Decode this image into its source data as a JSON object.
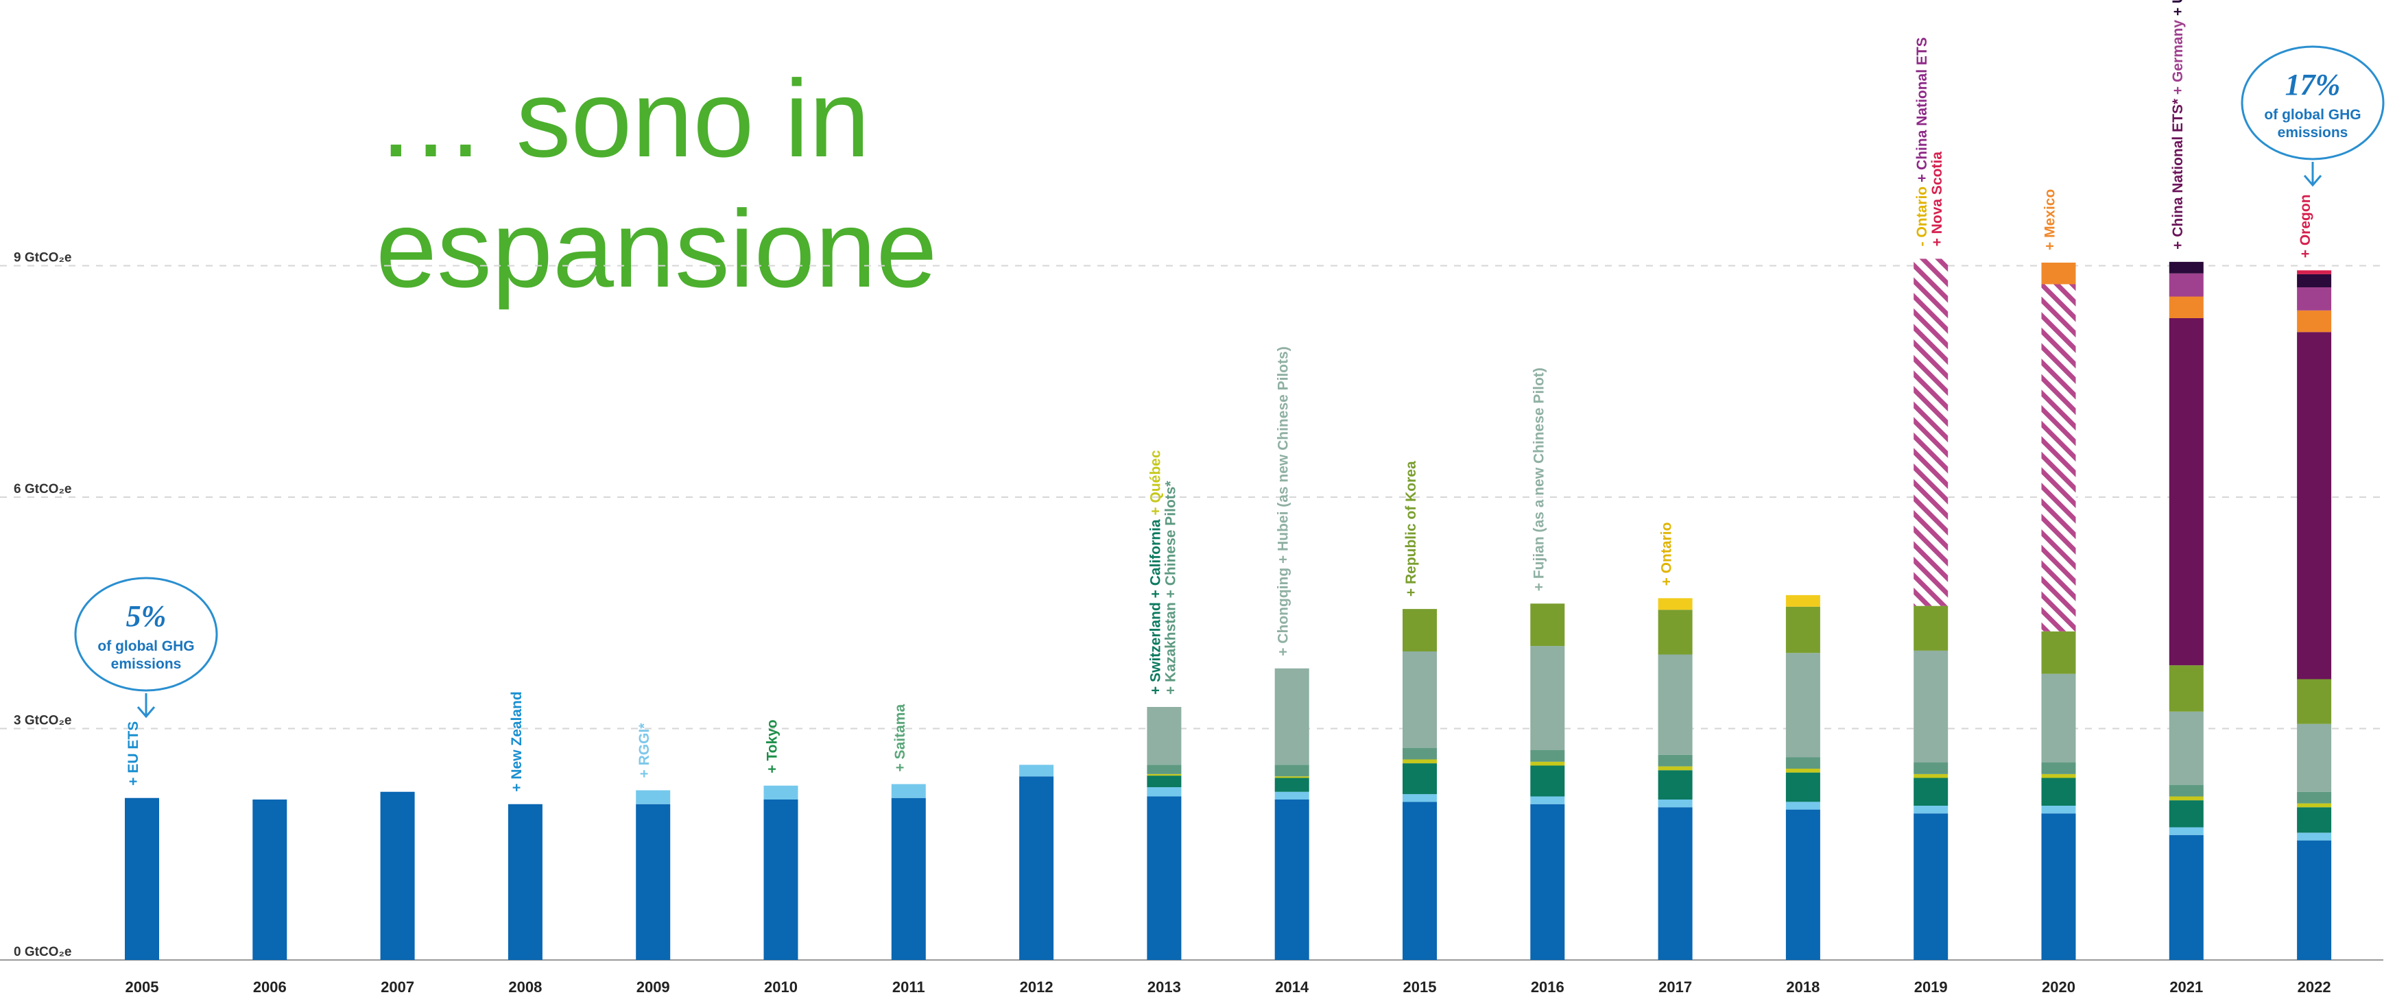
{
  "slide": {
    "title_line1": "… sono in",
    "title_line2": "espansione"
  },
  "chart_data": {
    "type": "bar",
    "stacked": true,
    "y_tick_labels": [
      "0 GtCO₂e",
      "3 GtCO₂e",
      "6 GtCO₂e",
      "9 GtCO₂e"
    ],
    "y_ticks": [
      0,
      3,
      6,
      9
    ],
    "ylim": [
      0,
      12
    ],
    "grid": "horizontal dotted",
    "categories": [
      "2005",
      "2006",
      "2007",
      "2008",
      "2009",
      "2010",
      "2011",
      "2012",
      "2013",
      "2014",
      "2015",
      "2016",
      "2017",
      "2018",
      "2019",
      "2020",
      "2021",
      "2022"
    ],
    "series": [
      {
        "color": "#0a67b2",
        "values": [
          2.1,
          2.08,
          2.18,
          2.02,
          2.02,
          2.08,
          2.1,
          2.38,
          2.12,
          2.08,
          2.05,
          2.02,
          1.98,
          1.95,
          1.9,
          1.9,
          1.62,
          1.55
        ]
      },
      {
        "color": "#74c8ec",
        "values": [
          0,
          0,
          0,
          0,
          0.18,
          0.18,
          0.18,
          0.15,
          0.12,
          0.1,
          0.1,
          0.1,
          0.1,
          0.1,
          0.1,
          0.1,
          0.1,
          0.1
        ]
      },
      {
        "color": "#0b7a5f",
        "values": [
          0,
          0,
          0,
          0,
          0,
          0,
          0,
          0,
          0.15,
          0.18,
          0.4,
          0.4,
          0.38,
          0.38,
          0.36,
          0.36,
          0.35,
          0.33
        ]
      },
      {
        "color": "#c6c81c",
        "values": [
          0,
          0,
          0,
          0,
          0,
          0,
          0,
          0,
          0.02,
          0.02,
          0.05,
          0.05,
          0.05,
          0.05,
          0.05,
          0.05,
          0.05,
          0.05
        ]
      },
      {
        "color": "#5e9a82",
        "values": [
          0,
          0,
          0,
          0,
          0,
          0,
          0,
          0,
          0.12,
          0.15,
          0.15,
          0.15,
          0.15,
          0.15,
          0.15,
          0.15,
          0.15,
          0.15
        ]
      },
      {
        "color": "#8fb0a3",
        "values": [
          0,
          0,
          0,
          0,
          0,
          0,
          0,
          0,
          0.75,
          1.25,
          1.25,
          1.35,
          1.3,
          1.35,
          1.45,
          1.15,
          0.95,
          0.88
        ]
      },
      {
        "color": "#7a9e2e",
        "values": [
          0,
          0,
          0,
          0,
          0,
          0,
          0,
          0,
          0,
          0,
          0.55,
          0.55,
          0.58,
          0.6,
          0.58,
          0.55,
          0.6,
          0.58
        ]
      },
      {
        "color": "#f2cc1d",
        "values": [
          0,
          0,
          0,
          0,
          0,
          0,
          0,
          0,
          0,
          0,
          0,
          0,
          0.15,
          0.15,
          0,
          0,
          0,
          0
        ]
      },
      {
        "color": "#b5488c",
        "pattern": "hatched",
        "values": [
          0,
          0,
          0,
          0,
          0,
          0,
          0,
          0,
          0,
          0,
          0,
          0,
          0,
          0,
          4.5,
          4.5,
          0,
          0
        ]
      },
      {
        "color": "#6b1459",
        "values": [
          0,
          0,
          0,
          0,
          0,
          0,
          0,
          0,
          0,
          0,
          0,
          0,
          0,
          0,
          0,
          0,
          4.5,
          4.5
        ]
      },
      {
        "color": "#f0882a",
        "values": [
          0,
          0,
          0,
          0,
          0,
          0,
          0,
          0,
          0,
          0,
          0,
          0,
          0,
          0,
          0,
          0.28,
          0.28,
          0.28
        ]
      },
      {
        "color": "#a0418f",
        "values": [
          0,
          0,
          0,
          0,
          0,
          0,
          0,
          0,
          0,
          0,
          0,
          0,
          0,
          0,
          0,
          0,
          0.3,
          0.3
        ]
      },
      {
        "color": "#2a0a3a",
        "values": [
          0,
          0,
          0,
          0,
          0,
          0,
          0,
          0,
          0,
          0,
          0,
          0,
          0,
          0,
          0,
          0,
          0.15,
          0.17
        ]
      },
      {
        "color": "#d6204e",
        "values": [
          0,
          0,
          0,
          0,
          0,
          0,
          0,
          0,
          0,
          0,
          0,
          0,
          0,
          0,
          0,
          0,
          0,
          0.05
        ]
      }
    ],
    "annotations": [
      {
        "year": "2005",
        "parts": [
          {
            "text": "+ EU ETS",
            "color": "#1a8fd0"
          }
        ]
      },
      {
        "year": "2008",
        "parts": [
          {
            "text": "+ New Zealand",
            "color": "#1a8fd0"
          }
        ]
      },
      {
        "year": "2009",
        "parts": [
          {
            "text": "+ RGGI*",
            "color": "#7ec8ea"
          }
        ]
      },
      {
        "year": "2010",
        "parts": [
          {
            "text": "+ Tokyo",
            "color": "#1f8f4a"
          }
        ]
      },
      {
        "year": "2011",
        "parts": [
          {
            "text": "+ Saitama",
            "color": "#5aa67a"
          }
        ]
      },
      {
        "year": "2013",
        "parts": [
          {
            "text": "+ Switzerland",
            "color": "#0b7a5f"
          },
          {
            "text": " + California",
            "color": "#0b7a5f"
          },
          {
            "text": " + Québec",
            "color": "#c6c81c"
          }
        ]
      },
      {
        "year": "2013",
        "line": 2,
        "parts": [
          {
            "text": "+ Kazakhstan + Chinese Pilots*",
            "color": "#5e9a82"
          }
        ]
      },
      {
        "year": "2014",
        "parts": [
          {
            "text": "+ Chongqing + Hubei (as new Chinese Pilots)",
            "color": "#8fb0a3"
          }
        ]
      },
      {
        "year": "2015",
        "parts": [
          {
            "text": "+ Republic of Korea",
            "color": "#7a9e2e"
          }
        ]
      },
      {
        "year": "2016",
        "parts": [
          {
            "text": "+ Fujian (as a new Chinese Pilot)",
            "color": "#8fb0a3"
          }
        ]
      },
      {
        "year": "2017",
        "parts": [
          {
            "text": "+ Ontario",
            "color": "#e0b400"
          }
        ]
      },
      {
        "year": "2019",
        "parts": [
          {
            "text": "- Ontario",
            "color": "#e0b400"
          },
          {
            "text": " + China National ETS",
            "color": "#8e2a87"
          }
        ]
      },
      {
        "year": "2019",
        "line": 2,
        "parts": [
          {
            "text": "+ Nova Scotia",
            "color": "#d6204e"
          }
        ]
      },
      {
        "year": "2020",
        "parts": [
          {
            "text": "+ Mexico",
            "color": "#f0882a"
          }
        ]
      },
      {
        "year": "2021",
        "parts": [
          {
            "text": "+ China National ETS*",
            "color": "#6b1459"
          },
          {
            "text": " + Germany",
            "color": "#a0418f"
          },
          {
            "text": " + UK",
            "color": "#2a0a3a"
          }
        ]
      },
      {
        "year": "2022",
        "parts": [
          {
            "text": "+ Oregon",
            "color": "#d6204e"
          }
        ]
      }
    ],
    "callouts": [
      {
        "value": "5%",
        "line1": "of global GHG",
        "line2": "emissions"
      },
      {
        "value": "17%",
        "line1": "of global GHG",
        "line2": "emissions"
      }
    ]
  }
}
